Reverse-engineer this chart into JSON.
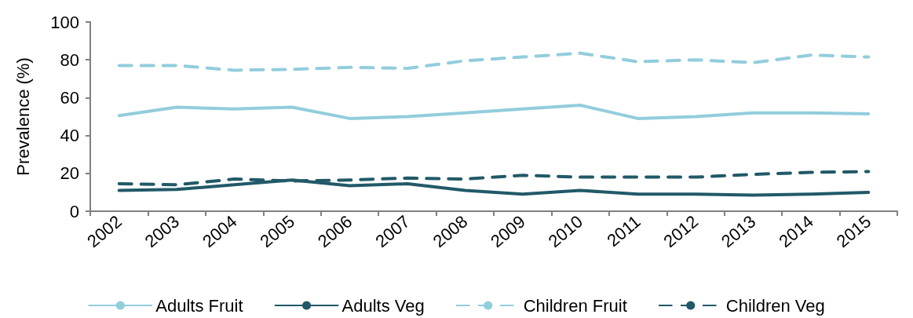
{
  "chart_data": {
    "type": "line",
    "ylabel": "Prevalence (%)",
    "categories": [
      "2002",
      "2003",
      "2004",
      "2005",
      "2006",
      "2007",
      "2008",
      "2009",
      "2010",
      "2011",
      "2012",
      "2013",
      "2014",
      "2015"
    ],
    "series": [
      {
        "name": "Adults Fruit",
        "color": "#92cddc",
        "line_style": "solid",
        "values": [
          50.5,
          55,
          54,
          55,
          49,
          50,
          52,
          54,
          56,
          49,
          50,
          52,
          52,
          51.5
        ]
      },
      {
        "name": "Adults Veg",
        "color": "#215968",
        "line_style": "solid",
        "values": [
          11,
          11.5,
          14,
          16.5,
          13.5,
          14.5,
          11,
          9,
          11,
          9,
          9,
          8.5,
          9,
          10
        ]
      },
      {
        "name": "Children Fruit",
        "color": "#92cddc",
        "line_style": "dashed",
        "values": [
          77,
          77,
          74.5,
          75,
          76,
          75.5,
          79.5,
          81.5,
          83.5,
          79,
          80,
          78.5,
          82.5,
          81.5
        ]
      },
      {
        "name": "Children Veg",
        "color": "#215968",
        "line_style": "dashed",
        "values": [
          14.5,
          14,
          17,
          16,
          16.5,
          17.5,
          17,
          19,
          18,
          18,
          18,
          19.5,
          20.5,
          21
        ]
      }
    ],
    "ylim": [
      0,
      100
    ],
    "yticks": [
      0,
      20,
      40,
      60,
      80,
      100
    ],
    "grid": false,
    "legend": "bottom",
    "marker": "none"
  }
}
